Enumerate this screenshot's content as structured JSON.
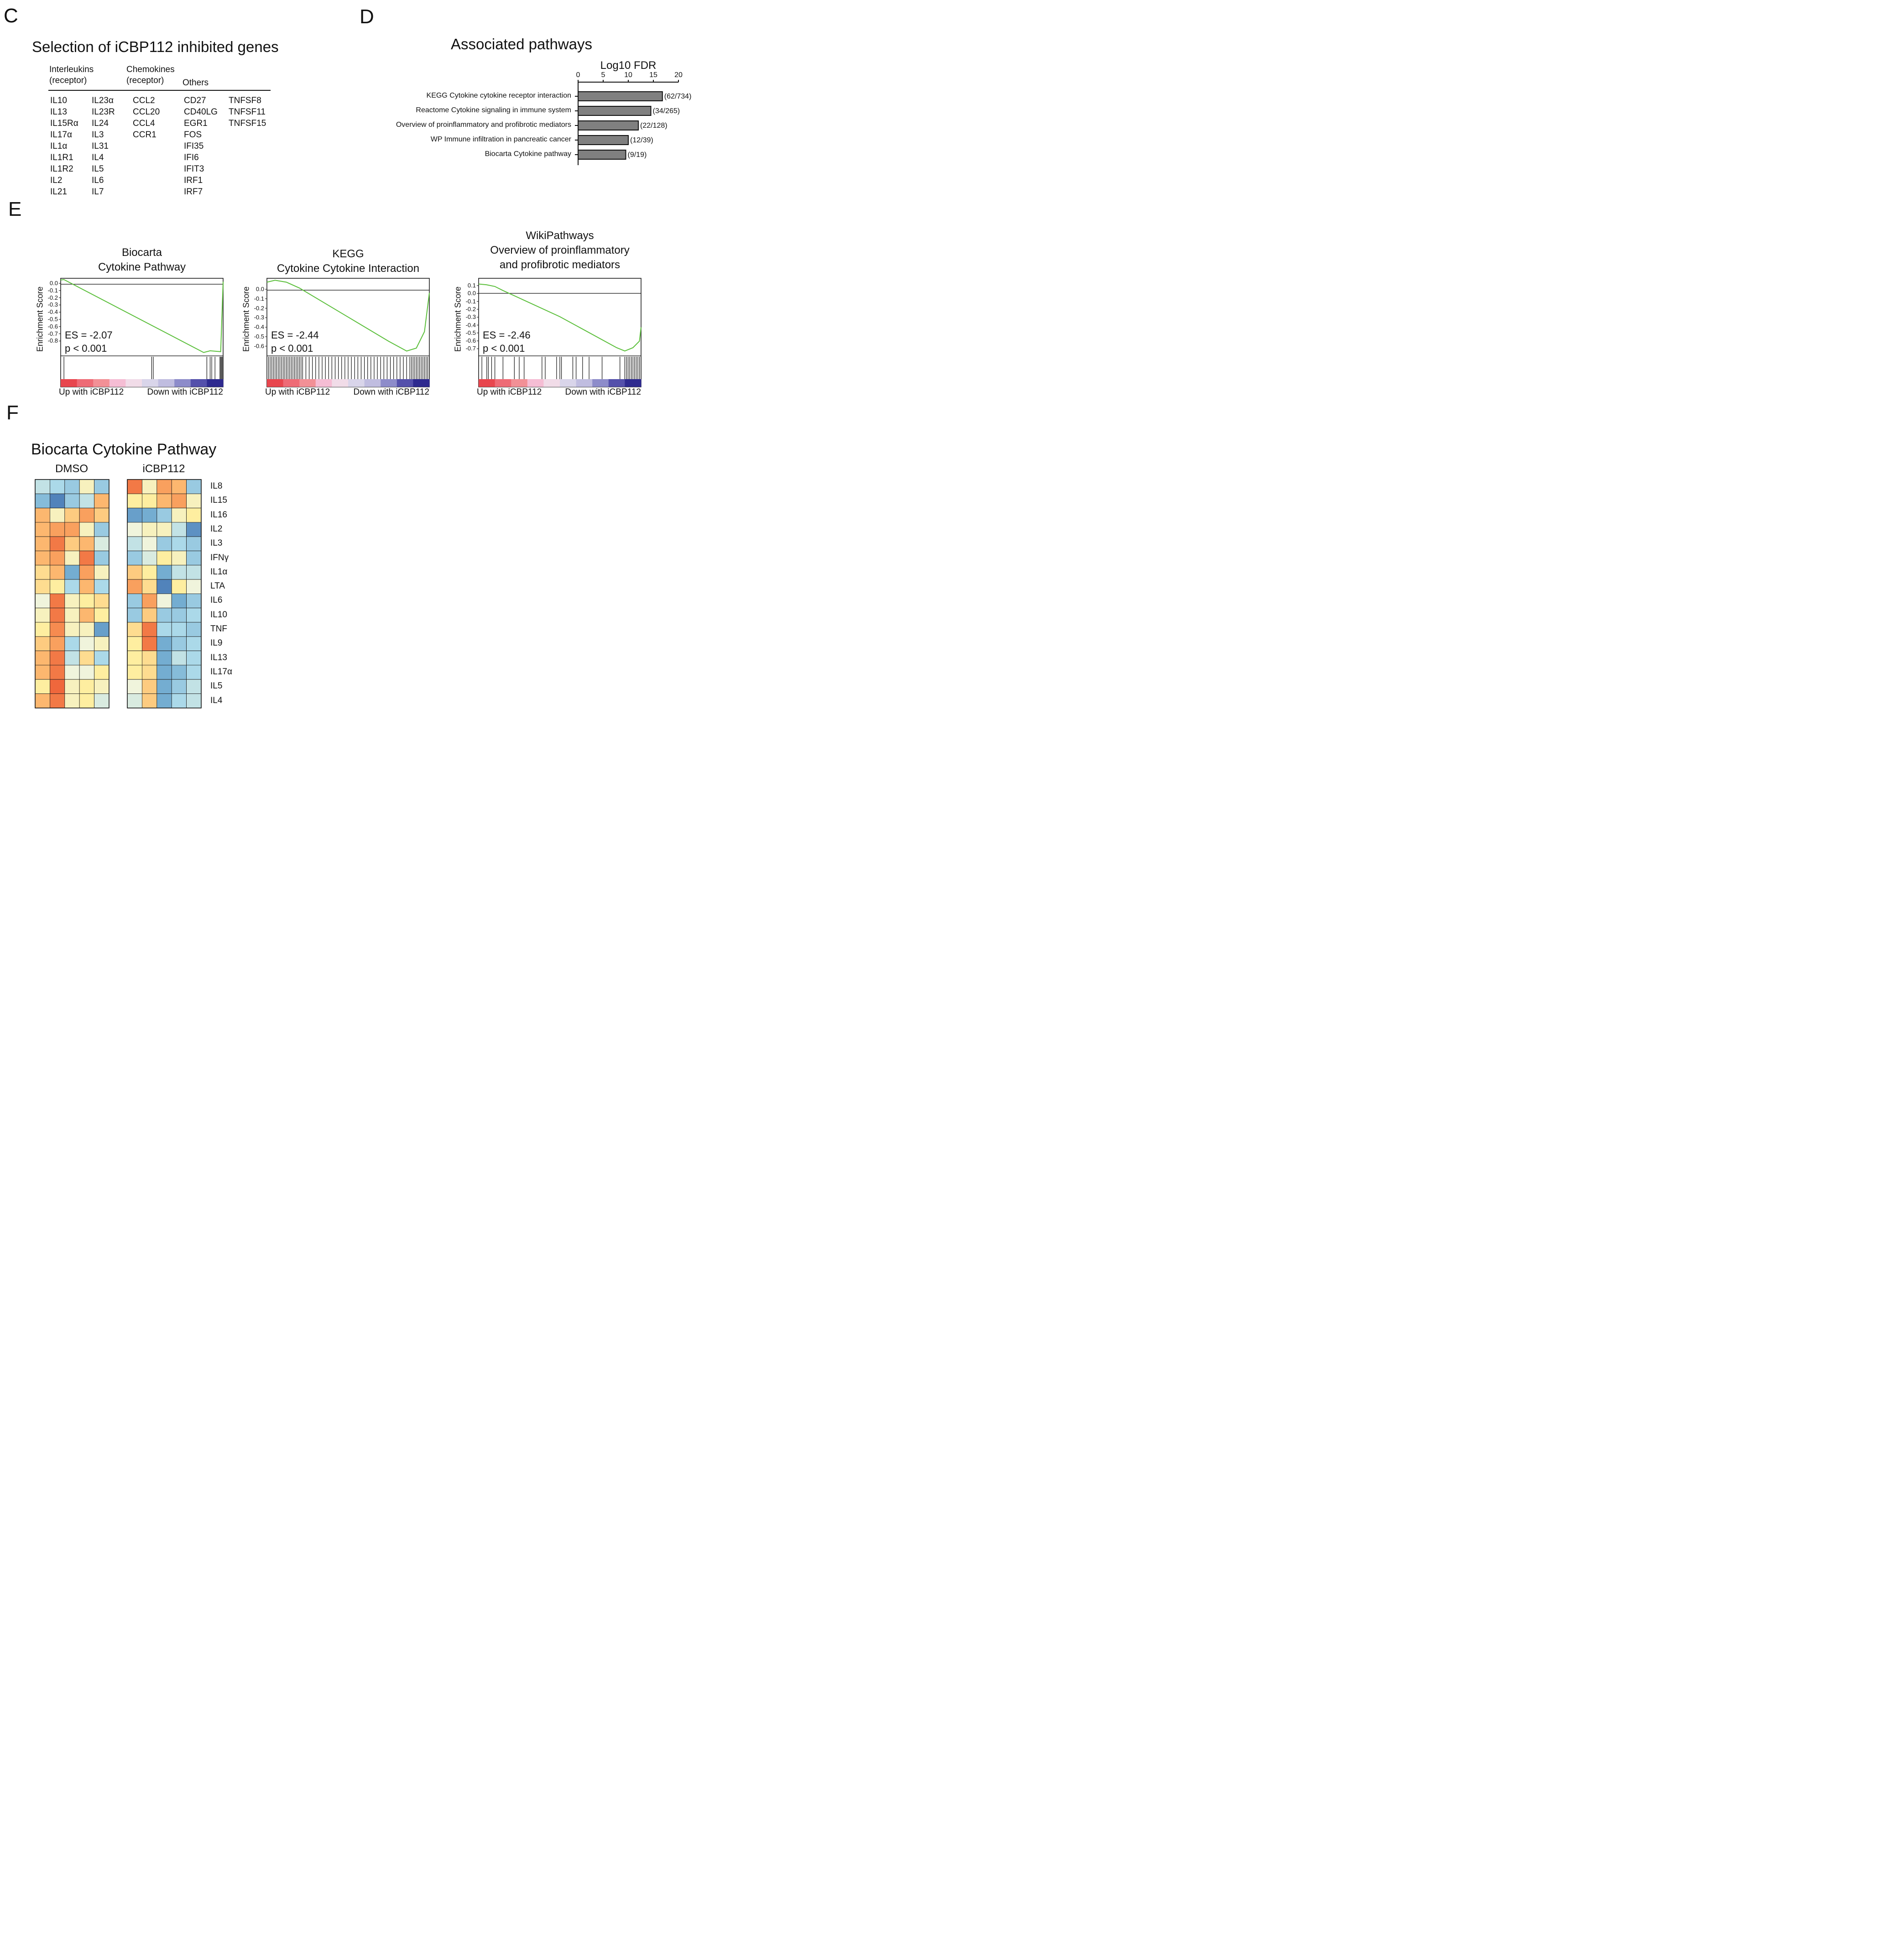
{
  "panels": {
    "c": "C",
    "d": "D",
    "e": "E",
    "f": "F"
  },
  "genes": {
    "title": "Selection of iCBP112 inhibited genes",
    "headers": {
      "interleukins": [
        "Interleukins",
        "(receptor)"
      ],
      "chemokines": [
        "Chemokines",
        "(receptor)"
      ],
      "others": "Others"
    },
    "columns": [
      [
        "IL10",
        "IL13",
        "IL15Rα",
        "IL17α",
        "IL1α",
        "IL1R1",
        "IL1R2",
        "IL2",
        "IL21"
      ],
      [
        "IL23α",
        "IL23R",
        "IL24",
        "IL3",
        "IL31",
        "IL4",
        "IL5",
        "IL6",
        "IL7"
      ],
      [
        "CCL2",
        "CCL20",
        "CCL4",
        "CCR1"
      ],
      [
        "CD27",
        "CD40LG",
        "EGR1",
        "FOS",
        "IFI35",
        "IFI6",
        "IFIT3",
        "IRF1",
        "IRF7"
      ],
      [
        "TNFSF8",
        "TNFSF11",
        "TNFSF15"
      ]
    ]
  },
  "chart_data": [
    {
      "type": "bar",
      "orientation": "horizontal",
      "title": "Associated pathways",
      "xlabel": "Log10 FDR",
      "xlim": [
        0,
        20
      ],
      "xticks": [
        0,
        5,
        10,
        15,
        20
      ],
      "color": "#808080",
      "categories": [
        "KEGG Cytokine cytokine receptor interaction",
        "Reactome Cytokine signaling in immune system",
        "Overview of proinflammatory and profibrotic mediators",
        "WP Immune infiltration in pancreatic cancer",
        "Biocarta Cytokine pathway"
      ],
      "values": [
        16.8,
        14.5,
        12,
        10,
        9.5
      ],
      "annotations": [
        "(62/734)",
        "(34/265)",
        "(22/128)",
        "(12/39)",
        "(9/19)"
      ]
    },
    {
      "type": "line",
      "title": [
        "Biocarta",
        "Cytokine Pathway"
      ],
      "ylabel": "Enrichment Score",
      "ylim": [
        -0.88,
        0.04
      ],
      "yticks": [
        "0.0",
        "-0.1",
        "-0.2",
        "-0.3",
        "-0.4",
        "-0.5",
        "-0.6",
        "-0.7",
        "-0.8"
      ],
      "es_text": "ES = -2.07",
      "p_text": "p < 0.001",
      "xlabels": [
        "Up with iCBP112",
        "Down with iCBP112"
      ],
      "line_color": "#5cbf3c",
      "curve": [
        [
          0,
          0.02
        ],
        [
          0.02,
          0.025
        ],
        [
          0.88,
          -0.84
        ],
        [
          0.92,
          -0.82
        ],
        [
          0.985,
          -0.83
        ],
        [
          1.0,
          0.0
        ]
      ],
      "hits": [
        0.02,
        0.56,
        0.57,
        0.9,
        0.92,
        0.93,
        0.95,
        0.98,
        0.985,
        0.99,
        0.995
      ]
    },
    {
      "type": "line",
      "title": [
        "KEGG",
        "Cytokine Cytokine Interaction"
      ],
      "ylabel": "Enrichment Score",
      "ylim": [
        -0.7,
        0.1
      ],
      "yticks": [
        "0.0",
        "-0.1",
        "-0.2",
        "-0.3",
        "-0.4",
        "-0.5",
        "-0.6"
      ],
      "es_text": "ES = -2.44",
      "p_text": "p < 0.001",
      "xlabels": [
        "Up with iCBP112",
        "Down with iCBP112"
      ],
      "line_color": "#5cbf3c",
      "curve": [
        [
          0,
          0.06
        ],
        [
          0.05,
          0.08
        ],
        [
          0.12,
          0.06
        ],
        [
          0.2,
          0.0
        ],
        [
          0.55,
          -0.35
        ],
        [
          0.75,
          -0.55
        ],
        [
          0.86,
          -0.65
        ],
        [
          0.92,
          -0.62
        ],
        [
          0.97,
          -0.45
        ],
        [
          1.0,
          -0.05
        ]
      ],
      "hits": [
        0.01,
        0.02,
        0.03,
        0.04,
        0.05,
        0.06,
        0.07,
        0.08,
        0.09,
        0.1,
        0.11,
        0.12,
        0.13,
        0.14,
        0.15,
        0.16,
        0.17,
        0.18,
        0.19,
        0.2,
        0.21,
        0.22,
        0.24,
        0.26,
        0.28,
        0.3,
        0.32,
        0.34,
        0.36,
        0.38,
        0.4,
        0.42,
        0.44,
        0.46,
        0.48,
        0.5,
        0.52,
        0.54,
        0.56,
        0.58,
        0.6,
        0.62,
        0.64,
        0.66,
        0.68,
        0.7,
        0.72,
        0.74,
        0.76,
        0.78,
        0.8,
        0.82,
        0.84,
        0.86,
        0.88,
        0.89,
        0.9,
        0.91,
        0.92,
        0.93,
        0.94,
        0.95,
        0.96,
        0.97,
        0.98,
        0.99,
        1.0
      ]
    },
    {
      "type": "line",
      "title": [
        "WikiPathways",
        "Overview of proinflammatory",
        "and profibrotic mediators"
      ],
      "ylabel": "Enrichment Score",
      "ylim": [
        -0.8,
        0.15
      ],
      "yticks": [
        "0.1",
        "0.0",
        "-0.1",
        "-0.2",
        "-0.3",
        "-0.4",
        "-0.5",
        "-0.6",
        "-0.7"
      ],
      "es_text": "ES = -2.46",
      "p_text": "p < 0.001",
      "xlabels": [
        "Up with iCBP112",
        "Down with iCBP112"
      ],
      "line_color": "#5cbf3c",
      "curve": [
        [
          0,
          0.08
        ],
        [
          0.05,
          0.07
        ],
        [
          0.1,
          0.05
        ],
        [
          0.15,
          0.0
        ],
        [
          0.5,
          -0.32
        ],
        [
          0.85,
          -0.7
        ],
        [
          0.9,
          -0.74
        ],
        [
          0.95,
          -0.7
        ],
        [
          0.99,
          -0.62
        ],
        [
          1.0,
          -0.45
        ]
      ],
      "hits": [
        0.02,
        0.05,
        0.06,
        0.08,
        0.1,
        0.15,
        0.22,
        0.25,
        0.28,
        0.39,
        0.41,
        0.48,
        0.5,
        0.51,
        0.58,
        0.6,
        0.64,
        0.68,
        0.76,
        0.87,
        0.9,
        0.91,
        0.92,
        0.93,
        0.94,
        0.95,
        0.96,
        0.97,
        0.98,
        0.99,
        1.0
      ]
    },
    {
      "type": "heatmap",
      "title": "Biocarta Cytokine Pathway",
      "groups": [
        "DMSO",
        "iCBP112"
      ],
      "rows": [
        "IL8",
        "IL15",
        "IL16",
        "IL2",
        "IL3",
        "IFNγ",
        "IL1α",
        "LTA",
        "IL6",
        "IL10",
        "TNF",
        "IL9",
        "IL13",
        "IL17α",
        "IL5",
        "IL4"
      ],
      "scale": "-1 blue to +1 red",
      "values": [
        [
          -0.2,
          -0.3,
          -0.4,
          0.1,
          -0.4,
          0.8,
          0.1,
          0.6,
          0.5,
          -0.4
        ],
        [
          -0.5,
          -0.9,
          -0.4,
          -0.2,
          0.5,
          0.2,
          0.2,
          0.5,
          0.6,
          0.1
        ],
        [
          0.5,
          0.1,
          0.4,
          0.6,
          0.4,
          -0.7,
          -0.6,
          -0.4,
          0.1,
          0.2
        ],
        [
          0.5,
          0.6,
          0.6,
          0.1,
          -0.4,
          0.0,
          0.1,
          0.1,
          -0.2,
          -0.8
        ],
        [
          0.5,
          0.8,
          0.4,
          0.5,
          -0.1,
          -0.2,
          0.0,
          -0.4,
          -0.3,
          -0.4
        ],
        [
          0.5,
          0.6,
          0.1,
          0.8,
          -0.4,
          -0.4,
          -0.1,
          0.2,
          0.1,
          -0.4
        ],
        [
          0.3,
          0.5,
          -0.6,
          0.6,
          0.1,
          0.4,
          0.2,
          -0.6,
          -0.2,
          -0.2
        ],
        [
          0.3,
          0.2,
          -0.3,
          0.5,
          -0.3,
          0.6,
          0.3,
          -0.9,
          0.2,
          0.0
        ],
        [
          0.0,
          0.8,
          0.1,
          0.2,
          0.3,
          -0.4,
          0.6,
          0.0,
          -0.6,
          -0.4
        ],
        [
          0.1,
          0.8,
          0.1,
          0.5,
          0.2,
          -0.4,
          0.4,
          -0.4,
          -0.4,
          -0.3
        ],
        [
          0.2,
          0.7,
          0.1,
          0.1,
          -0.7,
          0.3,
          0.8,
          -0.3,
          -0.3,
          -0.4
        ],
        [
          0.4,
          0.6,
          -0.3,
          0.0,
          0.1,
          0.2,
          0.8,
          -0.6,
          -0.4,
          -0.3
        ],
        [
          0.5,
          0.8,
          -0.2,
          0.3,
          -0.3,
          0.2,
          0.3,
          -0.6,
          -0.2,
          -0.3
        ],
        [
          0.5,
          0.8,
          0.0,
          0.0,
          0.2,
          0.2,
          0.3,
          -0.6,
          -0.5,
          -0.3
        ],
        [
          0.2,
          0.9,
          0.1,
          0.2,
          0.1,
          0.0,
          0.4,
          -0.6,
          -0.4,
          -0.2
        ],
        [
          0.5,
          0.8,
          0.1,
          0.2,
          -0.1,
          -0.1,
          0.4,
          -0.6,
          -0.3,
          -0.2
        ]
      ]
    }
  ]
}
